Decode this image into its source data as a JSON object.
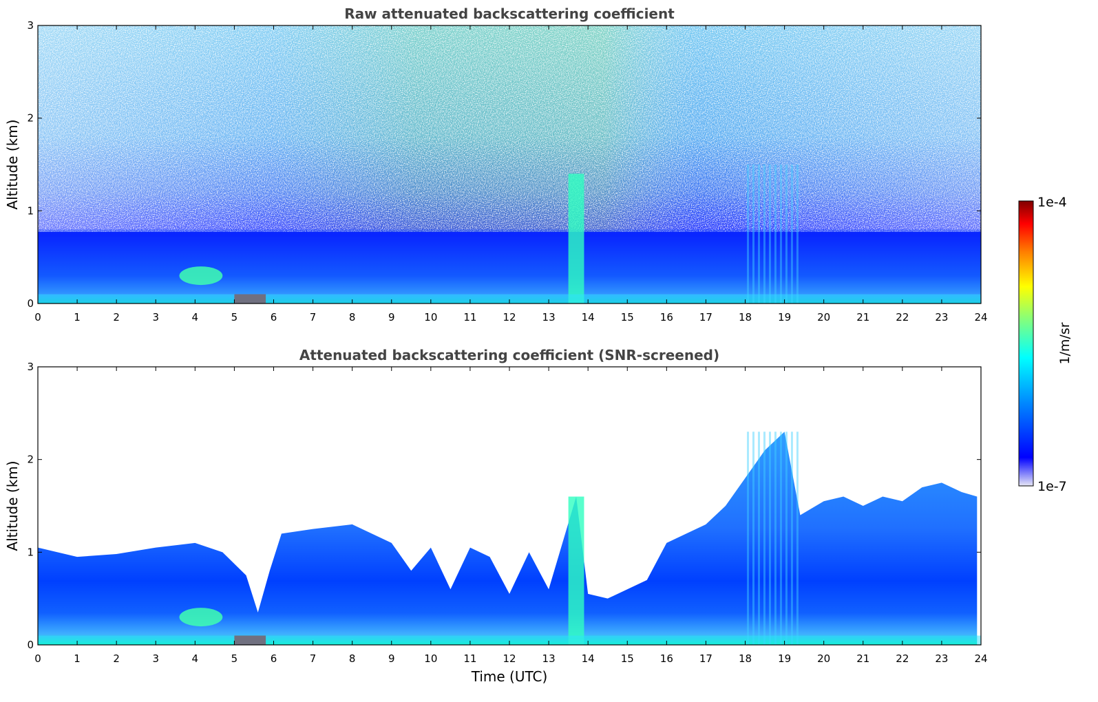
{
  "chart_data": [
    {
      "type": "heatmap",
      "title": "Raw attenuated backscattering coefficient",
      "xlabel": "",
      "ylabel": "Altitude (km)",
      "xlim": [
        0,
        24
      ],
      "ylim": [
        0,
        3
      ],
      "xticks": [
        "0",
        "1",
        "2",
        "3",
        "4",
        "5",
        "6",
        "7",
        "8",
        "9",
        "10",
        "11",
        "12",
        "13",
        "14",
        "15",
        "16",
        "17",
        "18",
        "19",
        "20",
        "21",
        "22",
        "23",
        "24"
      ],
      "yticks": [
        "0",
        "1",
        "2",
        "3"
      ],
      "colorscale": "jet",
      "screened": false,
      "features": [
        {
          "kind": "aerosol-layer",
          "time_range": [
            0,
            24
          ],
          "altitude_range": [
            0,
            0.8
          ]
        },
        {
          "kind": "strong-near-surface-return",
          "time_range": [
            5.0,
            5.8
          ],
          "altitude_range": [
            0.0,
            0.1
          ]
        },
        {
          "kind": "elevated-plume",
          "time_range": [
            3.6,
            4.7
          ],
          "altitude_range": [
            0.2,
            0.4
          ]
        },
        {
          "kind": "vertical-streak",
          "time_range": [
            13.5,
            13.9
          ],
          "altitude_range": [
            0,
            1.4
          ]
        },
        {
          "kind": "vertical-streaks",
          "time_range": [
            18.0,
            19.4
          ],
          "altitude_range": [
            0,
            1.5
          ]
        }
      ]
    },
    {
      "type": "heatmap",
      "title": "Attenuated backscattering coefficient (SNR-screened)",
      "xlabel": "Time (UTC)",
      "ylabel": "Altitude (km)",
      "xlim": [
        0,
        24
      ],
      "ylim": [
        0,
        3
      ],
      "xticks": [
        "0",
        "1",
        "2",
        "3",
        "4",
        "5",
        "6",
        "7",
        "8",
        "9",
        "10",
        "11",
        "12",
        "13",
        "14",
        "15",
        "16",
        "17",
        "18",
        "19",
        "20",
        "21",
        "22",
        "23",
        "24"
      ],
      "yticks": [
        "0",
        "1",
        "2",
        "3"
      ],
      "colorscale": "jet",
      "screened": true,
      "layer_top_km": [
        [
          0,
          1.05
        ],
        [
          1,
          0.95
        ],
        [
          2,
          0.98
        ],
        [
          3,
          1.05
        ],
        [
          4,
          1.1
        ],
        [
          4.7,
          1.0
        ],
        [
          5.3,
          0.75
        ],
        [
          5.6,
          0.35
        ],
        [
          5.9,
          0.8
        ],
        [
          6.2,
          1.2
        ],
        [
          7,
          1.25
        ],
        [
          8,
          1.3
        ],
        [
          9,
          1.1
        ],
        [
          9.5,
          0.8
        ],
        [
          10,
          1.05
        ],
        [
          10.5,
          0.6
        ],
        [
          11,
          1.05
        ],
        [
          11.5,
          0.95
        ],
        [
          12,
          0.55
        ],
        [
          12.5,
          1.0
        ],
        [
          13,
          0.6
        ],
        [
          13.7,
          1.6
        ],
        [
          14,
          0.55
        ],
        [
          14.5,
          0.5
        ],
        [
          15,
          0.6
        ],
        [
          15.5,
          0.7
        ],
        [
          16,
          1.1
        ],
        [
          16.5,
          1.2
        ],
        [
          17,
          1.3
        ],
        [
          17.5,
          1.5
        ],
        [
          18,
          1.8
        ],
        [
          18.5,
          2.1
        ],
        [
          19,
          2.3
        ],
        [
          19.4,
          1.4
        ],
        [
          20,
          1.55
        ],
        [
          20.5,
          1.6
        ],
        [
          21,
          1.5
        ],
        [
          21.5,
          1.6
        ],
        [
          22,
          1.55
        ],
        [
          22.5,
          1.7
        ],
        [
          23,
          1.75
        ],
        [
          23.5,
          1.65
        ],
        [
          23.9,
          1.6
        ]
      ],
      "features": [
        {
          "kind": "strong-near-surface-return",
          "time_range": [
            5.0,
            5.8
          ],
          "altitude_range": [
            0.0,
            0.1
          ]
        },
        {
          "kind": "elevated-plume",
          "time_range": [
            3.6,
            4.7
          ],
          "altitude_range": [
            0.2,
            0.4
          ]
        },
        {
          "kind": "vertical-streak",
          "time_range": [
            13.5,
            13.9
          ],
          "altitude_range": [
            0,
            1.6
          ]
        },
        {
          "kind": "vertical-streaks",
          "time_range": [
            18.0,
            19.4
          ],
          "altitude_range": [
            0,
            2.3
          ]
        }
      ]
    }
  ],
  "colorbar": {
    "min_label": "1e-7",
    "max_label": "1e-4",
    "unit_label": "1/m/sr",
    "colors": [
      "#e6e6f5",
      "#0000ff",
      "#0080ff",
      "#00ffff",
      "#80ff80",
      "#ffff00",
      "#ff8000",
      "#ff0000",
      "#800000"
    ]
  }
}
